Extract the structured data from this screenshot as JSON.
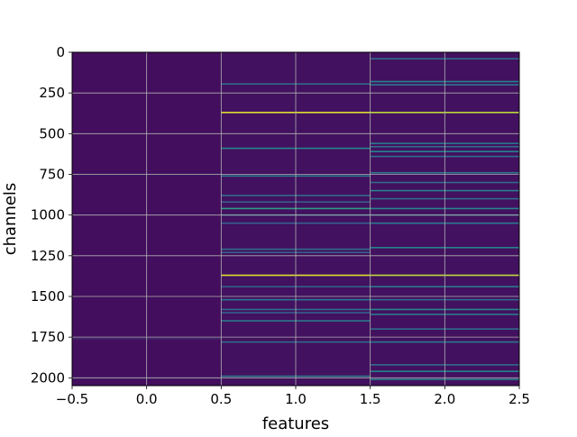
{
  "chart_data": {
    "type": "heatmap",
    "title": "",
    "xlabel": "features",
    "ylabel": "channels",
    "xlim": [
      -0.5,
      2.5
    ],
    "ylim": [
      2048,
      0
    ],
    "y_inverted": true,
    "x_ticks": [
      -0.5,
      0.0,
      0.5,
      1.0,
      1.5,
      2.0,
      2.5
    ],
    "x_tick_labels": [
      "−0.5",
      "0.0",
      "0.5",
      "1.0",
      "1.5",
      "2.0",
      "2.5"
    ],
    "y_ticks": [
      0,
      250,
      500,
      750,
      1000,
      1250,
      1500,
      1750,
      2000
    ],
    "y_tick_labels": [
      "0",
      "250",
      "500",
      "750",
      "1000",
      "1250",
      "1500",
      "1750",
      "2000"
    ],
    "grid": true,
    "colormap": "viridis",
    "columns": [
      {
        "feature": 0,
        "base": 0.04,
        "bands": [
          {
            "channel": 750,
            "value": 0.12
          },
          {
            "channel": 1760,
            "value": 0.12
          },
          {
            "channel": 2000,
            "value": 0.1
          }
        ]
      },
      {
        "feature": 1,
        "base": 0.05,
        "bands": [
          {
            "channel": 195,
            "value": 0.35
          },
          {
            "channel": 370,
            "value": 0.95
          },
          {
            "channel": 590,
            "value": 0.45
          },
          {
            "channel": 760,
            "value": 0.4
          },
          {
            "channel": 880,
            "value": 0.35
          },
          {
            "channel": 920,
            "value": 0.3
          },
          {
            "channel": 960,
            "value": 0.55
          },
          {
            "channel": 1000,
            "value": 0.35
          },
          {
            "channel": 1050,
            "value": 0.3
          },
          {
            "channel": 1210,
            "value": 0.35
          },
          {
            "channel": 1230,
            "value": 0.3
          },
          {
            "channel": 1370,
            "value": 0.95
          },
          {
            "channel": 1440,
            "value": 0.3
          },
          {
            "channel": 1520,
            "value": 0.4
          },
          {
            "channel": 1580,
            "value": 0.35
          },
          {
            "channel": 1600,
            "value": 0.3
          },
          {
            "channel": 1650,
            "value": 0.4
          },
          {
            "channel": 1780,
            "value": 0.35
          },
          {
            "channel": 1990,
            "value": 0.4
          }
        ]
      },
      {
        "feature": 2,
        "base": 0.05,
        "bands": [
          {
            "channel": 40,
            "value": 0.35
          },
          {
            "channel": 180,
            "value": 0.45
          },
          {
            "channel": 200,
            "value": 0.4
          },
          {
            "channel": 370,
            "value": 0.9
          },
          {
            "channel": 560,
            "value": 0.4
          },
          {
            "channel": 580,
            "value": 0.35
          },
          {
            "channel": 610,
            "value": 0.45
          },
          {
            "channel": 640,
            "value": 0.35
          },
          {
            "channel": 740,
            "value": 0.4
          },
          {
            "channel": 800,
            "value": 0.35
          },
          {
            "channel": 850,
            "value": 0.45
          },
          {
            "channel": 900,
            "value": 0.35
          },
          {
            "channel": 960,
            "value": 0.45
          },
          {
            "channel": 1000,
            "value": 0.35
          },
          {
            "channel": 1050,
            "value": 0.4
          },
          {
            "channel": 1200,
            "value": 0.45
          },
          {
            "channel": 1370,
            "value": 0.9
          },
          {
            "channel": 1440,
            "value": 0.4
          },
          {
            "channel": 1520,
            "value": 0.35
          },
          {
            "channel": 1580,
            "value": 0.45
          },
          {
            "channel": 1610,
            "value": 0.4
          },
          {
            "channel": 1700,
            "value": 0.35
          },
          {
            "channel": 1780,
            "value": 0.4
          },
          {
            "channel": 1920,
            "value": 0.35
          },
          {
            "channel": 1960,
            "value": 0.45
          },
          {
            "channel": 2010,
            "value": 0.4
          }
        ]
      }
    ]
  }
}
